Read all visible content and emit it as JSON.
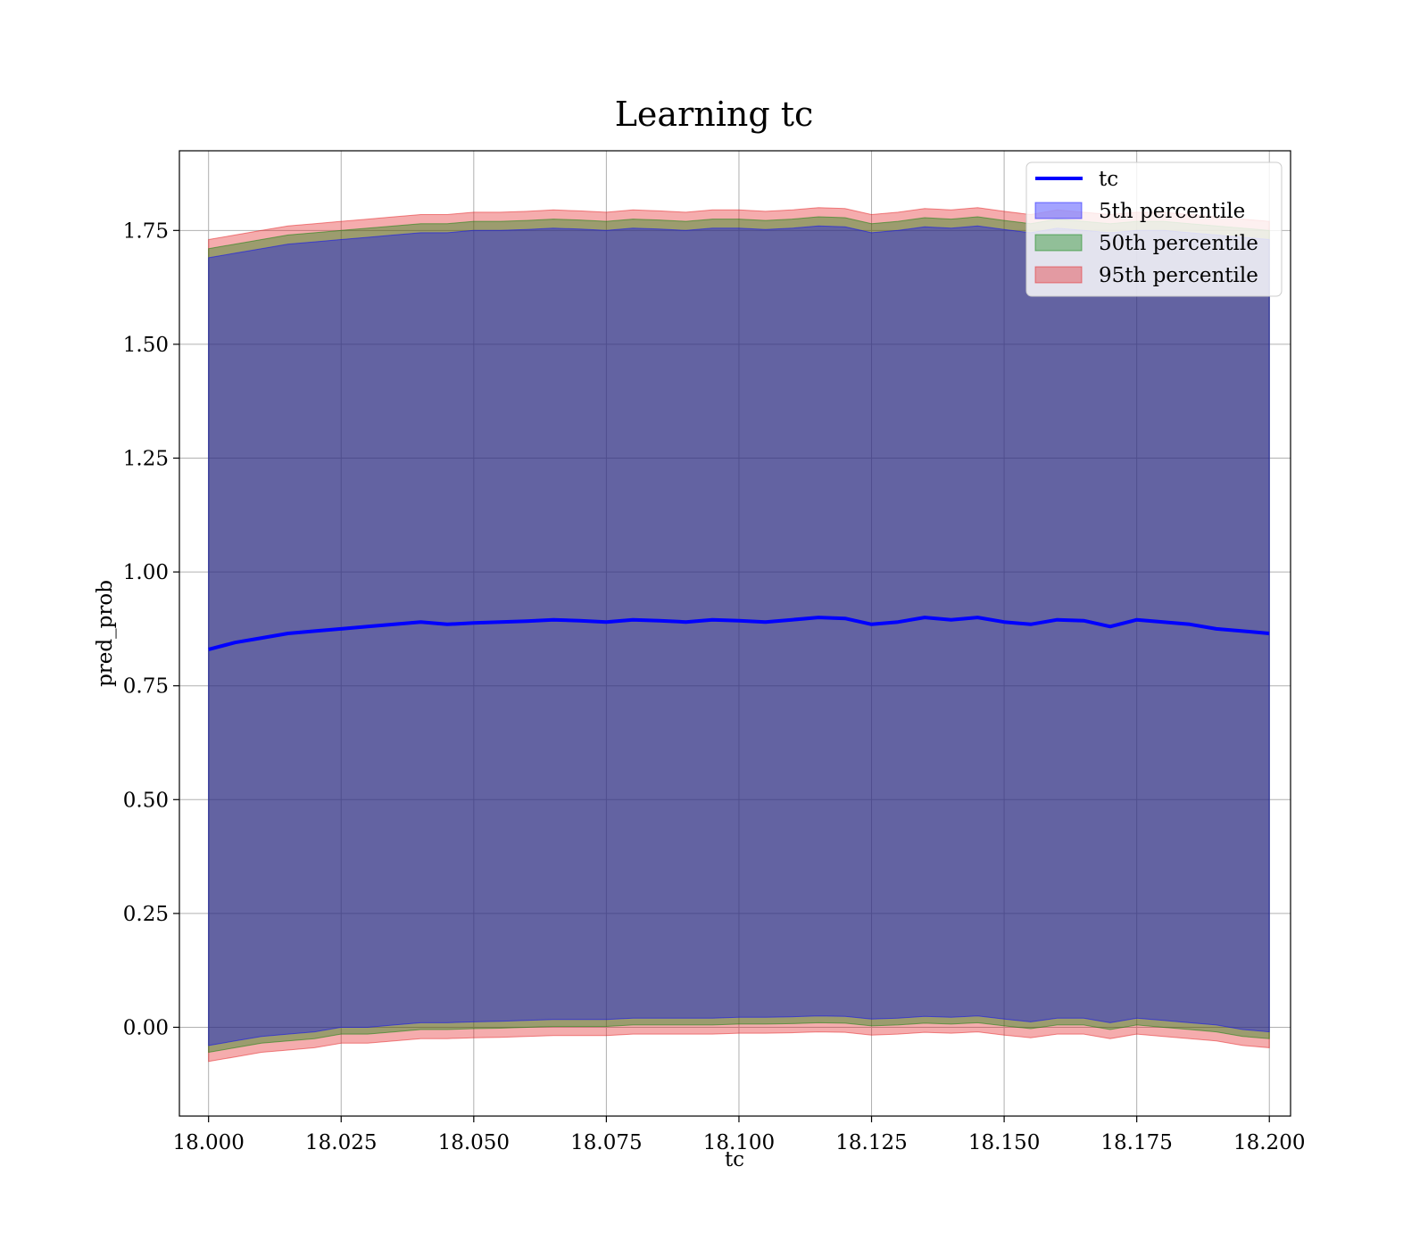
{
  "chart_data": {
    "type": "line",
    "title": "Learning tc",
    "xlabel": "tc",
    "ylabel": "pred_prob",
    "xlim": [
      17.9945,
      18.204
    ],
    "ylim": [
      -0.195,
      1.925
    ],
    "xticks": [
      "18.000",
      "18.025",
      "18.050",
      "18.075",
      "18.100",
      "18.125",
      "18.150",
      "18.175",
      "18.200"
    ],
    "yticks": [
      "0.00",
      "0.25",
      "0.50",
      "0.75",
      "1.00",
      "1.25",
      "1.50",
      "1.75"
    ],
    "grid": true,
    "legend_position": "top-right",
    "colors": {
      "line": "#0000ff",
      "p5": "#0000ff",
      "p50": "#008000",
      "p95": "#e41a1c"
    },
    "x": [
      18.0,
      18.005,
      18.01,
      18.015,
      18.02,
      18.025,
      18.03,
      18.035,
      18.04,
      18.045,
      18.05,
      18.055,
      18.06,
      18.065,
      18.07,
      18.075,
      18.08,
      18.085,
      18.09,
      18.095,
      18.1,
      18.105,
      18.11,
      18.115,
      18.12,
      18.125,
      18.13,
      18.135,
      18.14,
      18.145,
      18.15,
      18.155,
      18.16,
      18.165,
      18.17,
      18.175,
      18.18,
      18.185,
      18.19,
      18.195,
      18.2
    ],
    "series": [
      {
        "name": "tc",
        "values": [
          0.83,
          0.845,
          0.855,
          0.865,
          0.87,
          0.875,
          0.88,
          0.885,
          0.89,
          0.885,
          0.888,
          0.89,
          0.892,
          0.895,
          0.893,
          0.89,
          0.895,
          0.893,
          0.89,
          0.895,
          0.893,
          0.89,
          0.895,
          0.9,
          0.898,
          0.885,
          0.89,
          0.9,
          0.895,
          0.9,
          0.89,
          0.885,
          0.895,
          0.893,
          0.88,
          0.895,
          0.89,
          0.885,
          0.875,
          0.87,
          0.865
        ]
      },
      {
        "name": "5th percentile",
        "lower": [
          -0.04,
          -0.03,
          -0.02,
          -0.015,
          -0.01,
          0.0,
          0.0,
          0.005,
          0.01,
          0.01,
          0.012,
          0.013,
          0.015,
          0.017,
          0.017,
          0.017,
          0.02,
          0.02,
          0.02,
          0.02,
          0.022,
          0.022,
          0.023,
          0.025,
          0.024,
          0.018,
          0.02,
          0.024,
          0.022,
          0.025,
          0.018,
          0.012,
          0.02,
          0.02,
          0.01,
          0.02,
          0.015,
          0.01,
          0.005,
          -0.005,
          -0.01
        ],
        "upper": [
          1.69,
          1.7,
          1.71,
          1.72,
          1.725,
          1.73,
          1.735,
          1.74,
          1.745,
          1.745,
          1.75,
          1.75,
          1.752,
          1.755,
          1.753,
          1.75,
          1.755,
          1.753,
          1.75,
          1.755,
          1.755,
          1.752,
          1.755,
          1.76,
          1.758,
          1.745,
          1.75,
          1.758,
          1.755,
          1.76,
          1.752,
          1.745,
          1.755,
          1.75,
          1.745,
          1.75,
          1.75,
          1.745,
          1.74,
          1.735,
          1.73
        ]
      },
      {
        "name": "50th percentile",
        "lower": [
          -0.055,
          -0.045,
          -0.035,
          -0.03,
          -0.025,
          -0.015,
          -0.015,
          -0.01,
          -0.005,
          -0.005,
          -0.003,
          -0.002,
          0.0,
          0.002,
          0.002,
          0.002,
          0.005,
          0.005,
          0.005,
          0.005,
          0.007,
          0.007,
          0.008,
          0.01,
          0.009,
          0.003,
          0.005,
          0.009,
          0.007,
          0.01,
          0.003,
          -0.003,
          0.005,
          0.005,
          -0.005,
          0.005,
          0.0,
          -0.005,
          -0.01,
          -0.02,
          -0.025
        ],
        "upper": [
          1.71,
          1.72,
          1.73,
          1.74,
          1.745,
          1.75,
          1.755,
          1.76,
          1.765,
          1.765,
          1.77,
          1.77,
          1.772,
          1.775,
          1.773,
          1.77,
          1.775,
          1.773,
          1.77,
          1.775,
          1.775,
          1.772,
          1.775,
          1.78,
          1.778,
          1.765,
          1.77,
          1.778,
          1.775,
          1.78,
          1.772,
          1.765,
          1.775,
          1.77,
          1.765,
          1.77,
          1.77,
          1.765,
          1.76,
          1.755,
          1.75
        ]
      },
      {
        "name": "95th percentile",
        "lower": [
          -0.075,
          -0.065,
          -0.055,
          -0.05,
          -0.045,
          -0.035,
          -0.035,
          -0.03,
          -0.025,
          -0.025,
          -0.023,
          -0.022,
          -0.02,
          -0.018,
          -0.018,
          -0.018,
          -0.015,
          -0.015,
          -0.015,
          -0.015,
          -0.013,
          -0.013,
          -0.012,
          -0.01,
          -0.011,
          -0.017,
          -0.015,
          -0.011,
          -0.013,
          -0.01,
          -0.017,
          -0.023,
          -0.015,
          -0.015,
          -0.025,
          -0.015,
          -0.02,
          -0.025,
          -0.03,
          -0.04,
          -0.045
        ],
        "upper": [
          1.73,
          1.74,
          1.75,
          1.76,
          1.765,
          1.77,
          1.775,
          1.78,
          1.785,
          1.785,
          1.79,
          1.79,
          1.792,
          1.795,
          1.793,
          1.79,
          1.795,
          1.793,
          1.79,
          1.795,
          1.795,
          1.792,
          1.795,
          1.8,
          1.798,
          1.785,
          1.79,
          1.798,
          1.795,
          1.8,
          1.792,
          1.785,
          1.795,
          1.79,
          1.785,
          1.79,
          1.79,
          1.785,
          1.78,
          1.775,
          1.77
        ]
      }
    ]
  }
}
